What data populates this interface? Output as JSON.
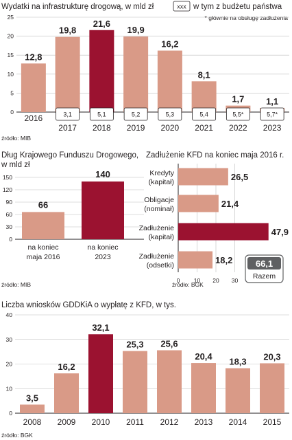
{
  "colors": {
    "bar": "#d99a87",
    "highlight": "#9b1230",
    "grid": "#bdbdbd",
    "axis": "#231f20",
    "sepBg": "#ffffff",
    "badge_bg": "#5f6062"
  },
  "chart_data": [
    {
      "id": "wydatki",
      "type": "bar",
      "title": "Wydatki na infrastrukturę drogową, w mld zł",
      "legend_box": "xxx",
      "legend_text": "w tym z budżetu państwa",
      "footnote": "* głównie na obsługę zadłużenia",
      "source": "źródło: MIB",
      "categories": [
        "2016",
        "2017",
        "2018",
        "2019",
        "2020",
        "2021",
        "2022",
        "2023"
      ],
      "values": [
        12.8,
        19.8,
        21.6,
        19.9,
        16.2,
        8.1,
        1.7,
        1.1
      ],
      "value_labels": [
        "12,8",
        "19,8",
        "21,6",
        "19,9",
        "16,2",
        "8,1",
        "1,7",
        "1,1"
      ],
      "budget_labels": [
        "",
        "3,1",
        "5,1",
        "5,2",
        "5,3",
        "5,4",
        "5,5*",
        "5,7*"
      ],
      "highlight_index": 2,
      "yticks": [
        "0",
        "5",
        "10",
        "15",
        "20",
        "25"
      ],
      "ylim": [
        0,
        25
      ]
    },
    {
      "id": "dlug",
      "type": "bar",
      "title_lines": [
        "Dług Krajowego Funduszu Drogowego,",
        "w mld zł"
      ],
      "categories_lines": [
        [
          "na koniec",
          "maja 2016"
        ],
        [
          "na koniec",
          "2023"
        ]
      ],
      "values": [
        66,
        140
      ],
      "value_labels": [
        "66",
        "140"
      ],
      "highlight_index": 1,
      "yticks": [
        "0",
        "30",
        "60",
        "90",
        "120",
        "150"
      ],
      "ylim": [
        0,
        150
      ],
      "source": "źródło: MIB"
    },
    {
      "id": "zadluzenie",
      "type": "bar",
      "orientation": "horizontal",
      "title": "Zadłużenie KFD na koniec maja 2016 r.",
      "categories_lines": [
        [
          "Kredyty",
          "(kapitał)"
        ],
        [
          "Obligacje",
          "(nominał)"
        ],
        [
          "Zadłużenie",
          "(kapitał)"
        ],
        [
          "Zadłużenie",
          "(odsetki)"
        ]
      ],
      "values": [
        26.5,
        21.4,
        47.9,
        18.2
      ],
      "value_labels": [
        "26,5",
        "21,4",
        "47,9",
        "18,2"
      ],
      "highlight_index": 2,
      "xticks": [
        "0",
        "10",
        "20",
        "30"
      ],
      "xlim": [
        0,
        50
      ],
      "total_value": "66,1",
      "total_label": "Razem",
      "source": "źródło: BGK"
    },
    {
      "id": "wnioski",
      "type": "bar",
      "title": "Liczba wniosków GDDKiA o wypłatę z KFD, w tys.",
      "categories": [
        "2008",
        "2009",
        "2010",
        "2011",
        "2012",
        "2013",
        "2014",
        "2015"
      ],
      "values": [
        3.5,
        16.2,
        32.1,
        25.3,
        25.6,
        20.4,
        18.3,
        20.3
      ],
      "value_labels": [
        "3,5",
        "16,2",
        "32,1",
        "25,3",
        "25,6",
        "20,4",
        "18,3",
        "20,3"
      ],
      "highlight_index": 2,
      "yticks": [
        "0",
        "10",
        "20",
        "30",
        "40"
      ],
      "ylim": [
        0,
        40
      ],
      "source": "źródło: BGK"
    }
  ]
}
